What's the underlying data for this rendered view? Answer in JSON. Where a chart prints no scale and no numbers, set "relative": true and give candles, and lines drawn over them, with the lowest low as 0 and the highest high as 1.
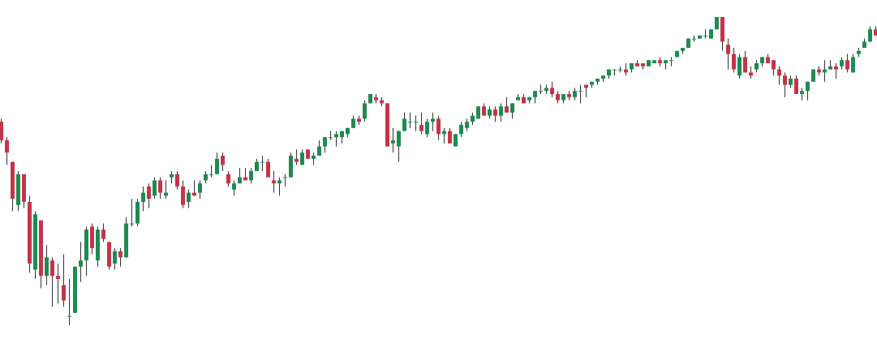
{
  "chart_data": {
    "type": "candlestick",
    "relative": true,
    "categories": [
      null,
      null,
      null,
      null,
      null,
      null,
      null,
      null,
      null,
      null,
      null,
      null,
      null,
      null,
      null,
      null,
      null,
      null,
      null,
      null,
      null,
      null,
      null,
      null,
      null,
      null,
      null,
      null,
      null,
      null,
      null,
      null,
      null,
      null,
      null,
      null,
      null,
      null,
      null,
      null,
      null,
      null,
      null,
      null,
      null,
      null,
      null,
      null,
      null,
      null,
      null,
      null,
      null,
      null,
      null,
      null,
      null,
      null,
      null,
      null,
      null,
      null,
      null,
      null,
      null,
      null,
      null,
      null,
      null,
      null,
      null,
      null,
      null,
      null,
      null,
      null,
      null,
      null,
      null,
      null,
      null,
      null,
      null,
      null,
      null,
      null,
      null,
      null,
      null,
      null,
      null,
      null,
      null,
      null,
      null,
      null,
      null,
      null,
      null,
      null,
      null,
      null,
      null,
      null,
      null,
      null,
      null,
      null,
      null,
      null,
      null,
      null,
      null,
      null,
      null,
      null,
      null,
      null,
      null,
      null,
      null,
      null,
      null,
      null,
      null,
      null,
      null,
      null,
      null,
      null,
      null,
      null,
      null,
      null,
      null,
      null,
      null,
      null,
      null,
      null,
      null,
      null,
      null,
      null,
      null,
      null,
      null,
      null,
      null,
      null,
      null,
      null,
      null,
      null,
      null
    ],
    "ohlc": [
      [
        0.66,
        0.67,
        0.59,
        0.6
      ],
      [
        0.6,
        0.61,
        0.52,
        0.56
      ],
      [
        0.53,
        0.53,
        0.37,
        0.41
      ],
      [
        0.39,
        0.5,
        0.37,
        0.49
      ],
      [
        0.49,
        0.49,
        0.38,
        0.4
      ],
      [
        0.4,
        0.42,
        0.17,
        0.2
      ],
      [
        0.18,
        0.37,
        0.15,
        0.36
      ],
      [
        0.34,
        0.34,
        0.12,
        0.16
      ],
      [
        0.16,
        0.26,
        0.13,
        0.22
      ],
      [
        0.21,
        0.22,
        0.06,
        0.16
      ],
      [
        0.16,
        0.2,
        0.07,
        0.15
      ],
      [
        0.13,
        0.23,
        0.06,
        0.08
      ],
      [
        0.03,
        0.15,
        0,
        0.03
      ],
      [
        0.04,
        0.19,
        0.04,
        0.19
      ],
      [
        0.19,
        0.27,
        0.14,
        0.21
      ],
      [
        0.21,
        0.32,
        0.16,
        0.31
      ],
      [
        0.32,
        0.33,
        0.23,
        0.25
      ],
      [
        0.21,
        0.32,
        0.19,
        0.31
      ],
      [
        0.31,
        0.33,
        0.27,
        0.28
      ],
      [
        0.27,
        0.27,
        0.18,
        0.19
      ],
      [
        0.2,
        0.25,
        0.18,
        0.24
      ],
      [
        0.24,
        0.25,
        0.19,
        0.22
      ],
      [
        0.22,
        0.35,
        0.22,
        0.33
      ],
      [
        0.33,
        0.41,
        0.32,
        0.33
      ],
      [
        0.33,
        0.41,
        0.32,
        0.4
      ],
      [
        0.4,
        0.45,
        0.37,
        0.43
      ],
      [
        0.45,
        0.46,
        0.38,
        0.41
      ],
      [
        0.42,
        0.48,
        0.41,
        0.47
      ],
      [
        0.47,
        0.48,
        0.41,
        0.43
      ],
      [
        0.42,
        0.47,
        0.41,
        0.43
      ],
      [
        0.48,
        0.5,
        0.46,
        0.49
      ],
      [
        0.49,
        0.5,
        0.44,
        0.45
      ],
      [
        0.45,
        0.47,
        0.38,
        0.39
      ],
      [
        0.4,
        0.44,
        0.38,
        0.43
      ],
      [
        0.43,
        0.47,
        0.42,
        0.42
      ],
      [
        0.43,
        0.47,
        0.41,
        0.46
      ],
      [
        0.47,
        0.5,
        0.46,
        0.49
      ],
      [
        0.49,
        0.52,
        0.48,
        0.49
      ],
      [
        0.49,
        0.56,
        0.49,
        0.54
      ],
      [
        0.55,
        0.56,
        0.5,
        0.52
      ],
      [
        0.49,
        0.5,
        0.45,
        0.46
      ],
      [
        0.44,
        0.47,
        0.42,
        0.46
      ],
      [
        0.46,
        0.51,
        0.46,
        0.48
      ],
      [
        0.48,
        0.51,
        0.47,
        0.47
      ],
      [
        0.47,
        0.51,
        0.46,
        0.5
      ],
      [
        0.5,
        0.54,
        0.5,
        0.53
      ],
      [
        0.53,
        0.55,
        0.5,
        0.53
      ],
      [
        0.53,
        0.54,
        0.48,
        0.48
      ],
      [
        0.47,
        0.5,
        0.43,
        0.46
      ],
      [
        0.46,
        0.48,
        0.42,
        0.47
      ],
      [
        0.48,
        0.49,
        0.45,
        0.48
      ],
      [
        0.48,
        0.56,
        0.48,
        0.55
      ],
      [
        0.54,
        0.57,
        0.52,
        0.53
      ],
      [
        0.52,
        0.57,
        0.52,
        0.56
      ],
      [
        0.57,
        0.57,
        0.54,
        0.54
      ],
      [
        0.54,
        0.56,
        0.52,
        0.55
      ],
      [
        0.55,
        0.6,
        0.55,
        0.58
      ],
      [
        0.58,
        0.61,
        0.56,
        0.61
      ],
      [
        0.61,
        0.63,
        0.6,
        0.61
      ],
      [
        0.61,
        0.63,
        0.58,
        0.62
      ],
      [
        0.61,
        0.63,
        0.59,
        0.63
      ],
      [
        0.62,
        0.64,
        0.61,
        0.64
      ],
      [
        0.64,
        0.68,
        0.64,
        0.67
      ],
      [
        0.67,
        0.68,
        0.65,
        0.66
      ],
      [
        0.67,
        0.73,
        0.66,
        0.72
      ],
      [
        0.72,
        0.75,
        0.72,
        0.75
      ],
      [
        0.74,
        0.75,
        0.72,
        0.73
      ],
      [
        0.73,
        0.74,
        0.71,
        0.72
      ],
      [
        0.72,
        0.72,
        0.58,
        0.58
      ],
      [
        0.59,
        0.64,
        0.56,
        0.6
      ],
      [
        0.58,
        0.63,
        0.53,
        0.63
      ],
      [
        0.63,
        0.69,
        0.63,
        0.67
      ],
      [
        0.66,
        0.69,
        0.64,
        0.66
      ],
      [
        0.66,
        0.68,
        0.63,
        0.66
      ],
      [
        0.65,
        0.69,
        0.62,
        0.63
      ],
      [
        0.62,
        0.67,
        0.61,
        0.66
      ],
      [
        0.66,
        0.69,
        0.63,
        0.67
      ],
      [
        0.67,
        0.68,
        0.6,
        0.62
      ],
      [
        0.62,
        0.64,
        0.59,
        0.63
      ],
      [
        0.63,
        0.64,
        0.59,
        0.59
      ],
      [
        0.58,
        0.62,
        0.58,
        0.62
      ],
      [
        0.62,
        0.66,
        0.61,
        0.65
      ],
      [
        0.64,
        0.67,
        0.63,
        0.66
      ],
      [
        0.66,
        0.69,
        0.65,
        0.68
      ],
      [
        0.67,
        0.71,
        0.67,
        0.71
      ],
      [
        0.71,
        0.72,
        0.68,
        0.68
      ],
      [
        0.68,
        0.71,
        0.67,
        0.7
      ],
      [
        0.7,
        0.71,
        0.66,
        0.68
      ],
      [
        0.68,
        0.72,
        0.66,
        0.71
      ],
      [
        0.71,
        0.74,
        0.69,
        0.69
      ],
      [
        0.69,
        0.72,
        0.67,
        0.72
      ],
      [
        0.73,
        0.75,
        0.73,
        0.74
      ],
      [
        0.74,
        0.75,
        0.72,
        0.72
      ],
      [
        0.73,
        0.74,
        0.72,
        0.74
      ],
      [
        0.74,
        0.76,
        0.72,
        0.76
      ],
      [
        0.76,
        0.78,
        0.75,
        0.76
      ],
      [
        0.76,
        0.78,
        0.75,
        0.77
      ],
      [
        0.77,
        0.79,
        0.74,
        0.75
      ],
      [
        0.75,
        0.76,
        0.72,
        0.73
      ],
      [
        0.73,
        0.75,
        0.72,
        0.75
      ],
      [
        0.75,
        0.76,
        0.73,
        0.74
      ],
      [
        0.74,
        0.77,
        0.73,
        0.76
      ],
      [
        0.76,
        0.78,
        0.72,
        0.76
      ],
      [
        0.78,
        0.78,
        0.74,
        0.77
      ],
      [
        0.78,
        0.79,
        0.77,
        0.79
      ],
      [
        0.79,
        0.8,
        0.78,
        0.8
      ],
      [
        0.8,
        0.81,
        0.79,
        0.81
      ],
      [
        0.81,
        0.83,
        0.8,
        0.83
      ],
      [
        0.83,
        0.83,
        0.81,
        0.83
      ],
      [
        0.83,
        0.84,
        0.82,
        0.83
      ],
      [
        0.83,
        0.85,
        0.81,
        0.82
      ],
      [
        0.83,
        0.85,
        0.82,
        0.85
      ],
      [
        0.85,
        0.86,
        0.84,
        0.84
      ],
      [
        0.85,
        0.85,
        0.83,
        0.84
      ],
      [
        0.84,
        0.86,
        0.84,
        0.86
      ],
      [
        0.85,
        0.86,
        0.85,
        0.86
      ],
      [
        0.86,
        0.87,
        0.84,
        0.85
      ],
      [
        0.85,
        0.86,
        0.83,
        0.86
      ],
      [
        0.86,
        0.87,
        0.84,
        0.86
      ],
      [
        0.87,
        0.89,
        0.87,
        0.89
      ],
      [
        0.89,
        0.9,
        0.88,
        0.9
      ],
      [
        0.9,
        0.93,
        0.9,
        0.93
      ],
      [
        0.93,
        0.94,
        0.92,
        0.93
      ],
      [
        0.93,
        0.94,
        0.93,
        0.94
      ],
      [
        0.94,
        0.96,
        0.93,
        0.94
      ],
      [
        0.93,
        0.96,
        0.93,
        0.96
      ],
      [
        0.96,
        1,
        0.96,
        1
      ],
      [
        1,
        1,
        0.89,
        0.92
      ],
      [
        0.91,
        0.93,
        0.83,
        0.88
      ],
      [
        0.88,
        0.9,
        0.82,
        0.83
      ],
      [
        0.81,
        0.88,
        0.8,
        0.87
      ],
      [
        0.87,
        0.89,
        0.82,
        0.82
      ],
      [
        0.82,
        0.84,
        0.8,
        0.81
      ],
      [
        0.83,
        0.86,
        0.82,
        0.85
      ],
      [
        0.85,
        0.87,
        0.84,
        0.87
      ],
      [
        0.87,
        0.88,
        0.85,
        0.85
      ],
      [
        0.86,
        0.86,
        0.81,
        0.83
      ],
      [
        0.83,
        0.84,
        0.78,
        0.81
      ],
      [
        0.81,
        0.82,
        0.74,
        0.78
      ],
      [
        0.78,
        0.81,
        0.77,
        0.8
      ],
      [
        0.8,
        0.81,
        0.75,
        0.75
      ],
      [
        0.75,
        0.77,
        0.73,
        0.76
      ],
      [
        0.76,
        0.79,
        0.73,
        0.79
      ],
      [
        0.79,
        0.83,
        0.79,
        0.83
      ],
      [
        0.83,
        0.84,
        0.81,
        0.82
      ],
      [
        0.82,
        0.86,
        0.79,
        0.83
      ],
      [
        0.83,
        0.86,
        0.83,
        0.84
      ],
      [
        0.84,
        0.85,
        0.8,
        0.83
      ],
      [
        0.84,
        0.87,
        0.83,
        0.86
      ],
      [
        0.86,
        0.88,
        0.82,
        0.83
      ],
      [
        0.82,
        0.88,
        0.82,
        0.87
      ],
      [
        0.88,
        0.9,
        0.87,
        0.89
      ],
      [
        0.9,
        0.93,
        0.9,
        0.92
      ],
      [
        0.92,
        0.97,
        0.92,
        0.96
      ],
      [
        0.96,
        0.97,
        0.94,
        0.94
      ]
    ]
  }
}
